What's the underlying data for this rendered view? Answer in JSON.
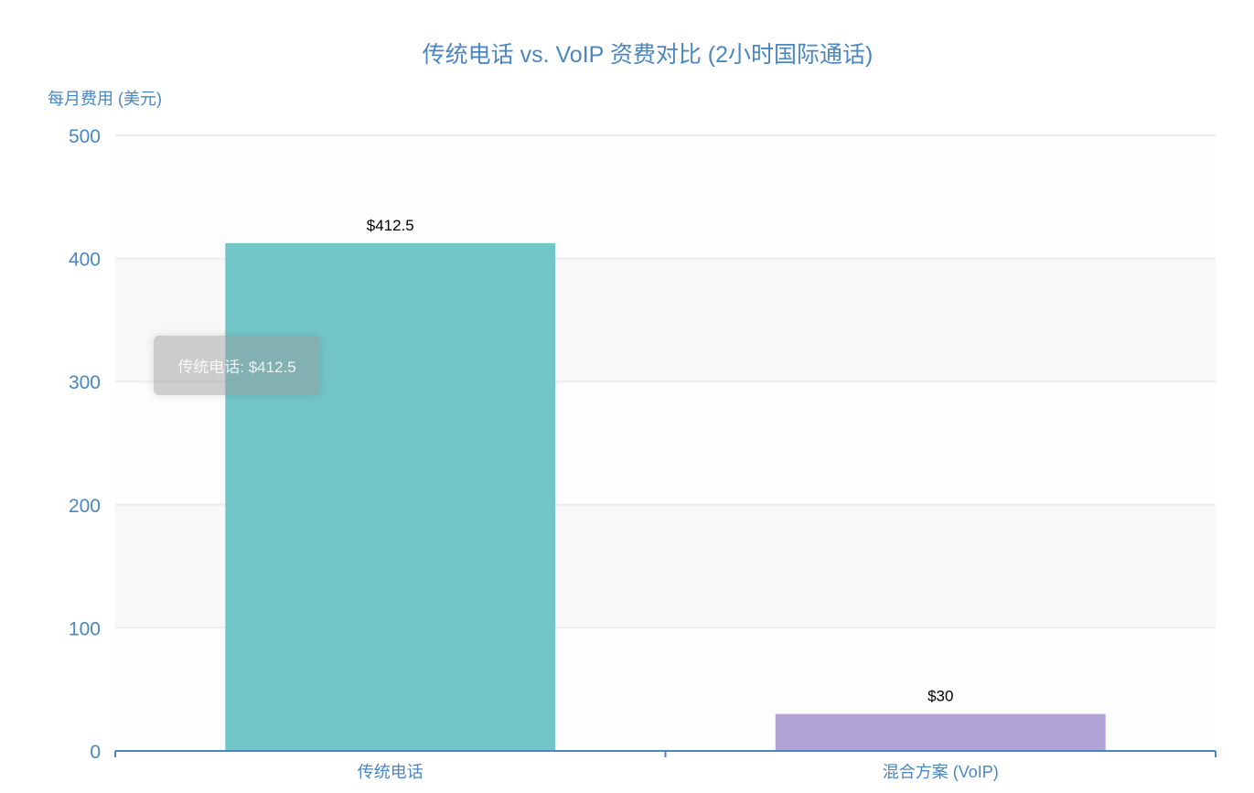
{
  "chart_data": {
    "type": "bar",
    "title": "传统电话 vs. VoIP 资费对比 (2小时国际通话)",
    "xlabel": "",
    "ylabel": "每月费用 (美元)",
    "categories": [
      "传统电话",
      "混合方案 (VoIP)"
    ],
    "values": [
      412.5,
      30
    ],
    "data_labels": [
      "$412.5",
      "$30"
    ],
    "colors": [
      "#73c6c8",
      "#b3a4d8"
    ],
    "ylim": [
      0,
      500
    ],
    "yticks": [
      0,
      100,
      200,
      300,
      400,
      500
    ],
    "grid": true,
    "tooltip": "传统电话: $412.5",
    "accent": "#4a86c0"
  }
}
